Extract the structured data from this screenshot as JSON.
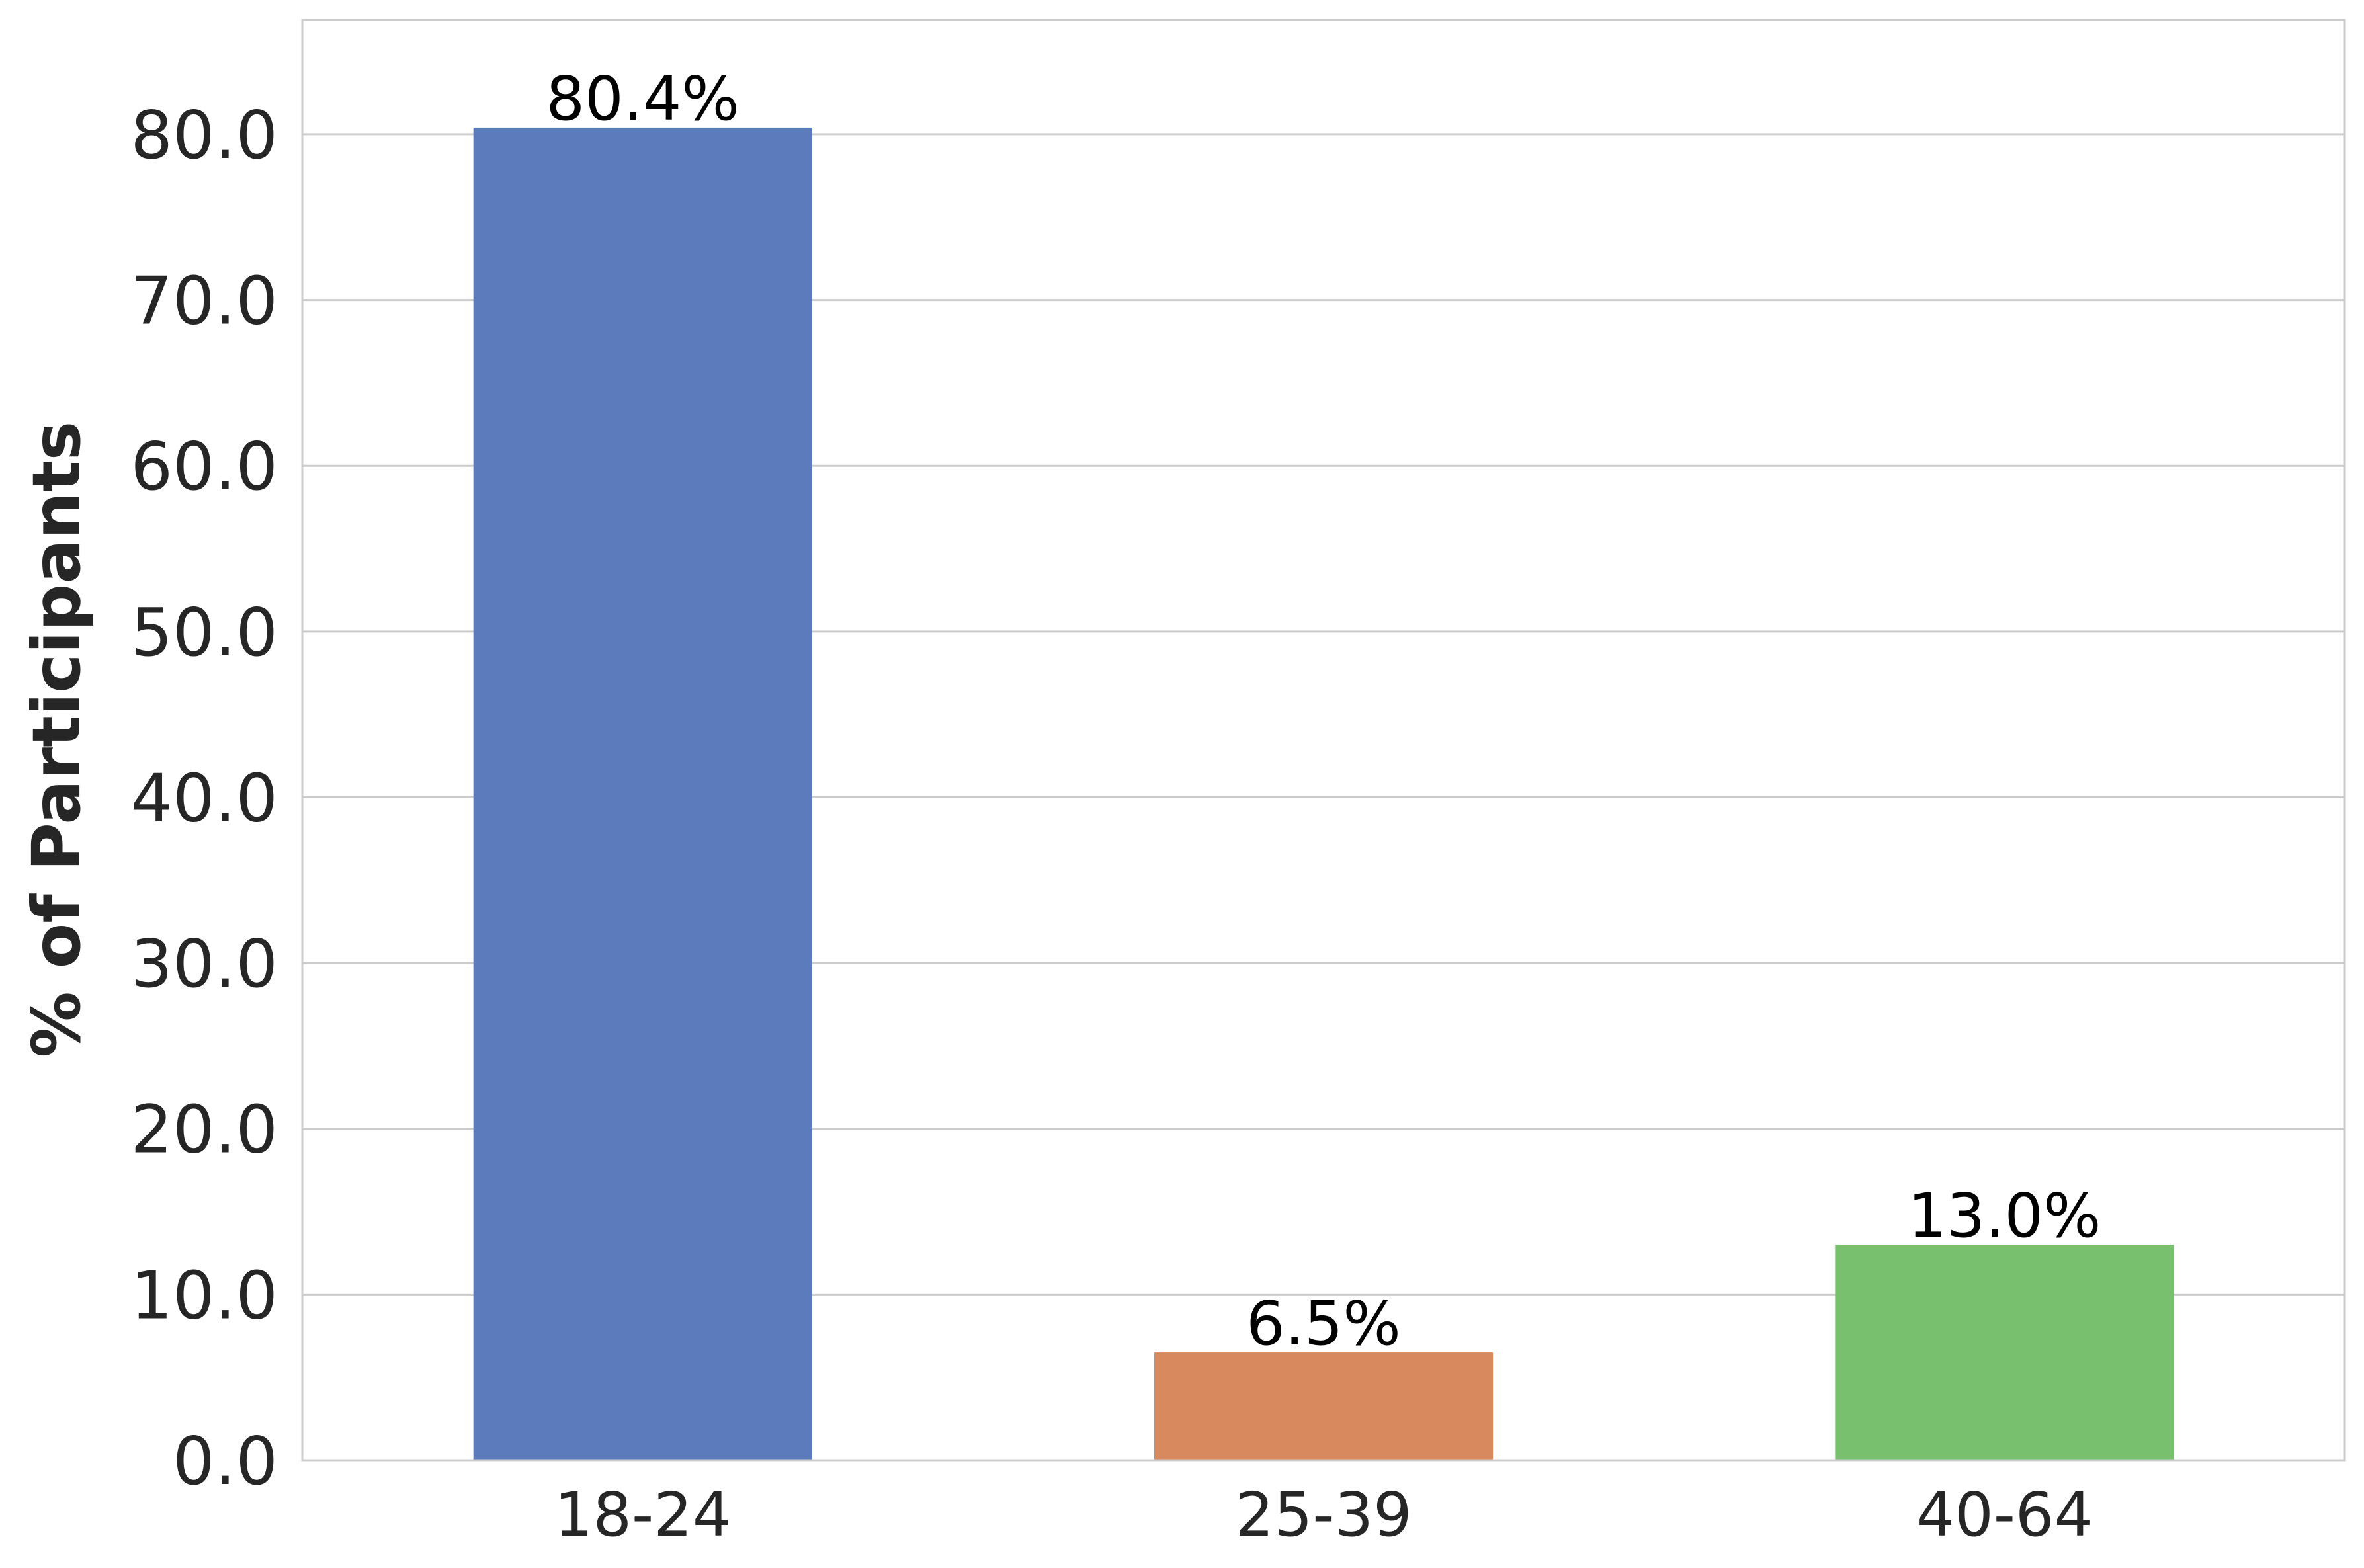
{
  "chart_data": {
    "type": "bar",
    "categories": [
      "18-24",
      "25-39",
      "40-64"
    ],
    "values": [
      80.4,
      6.5,
      13.0
    ],
    "value_labels": [
      "80.4%",
      "6.5%",
      "13.0%"
    ],
    "colors": [
      "#5b7bbd",
      "#d9895e",
      "#78bf6e"
    ],
    "title": "",
    "xlabel": "",
    "ylabel": "% of Participants",
    "ylim": [
      0,
      86.9
    ],
    "yticks": [
      0,
      10,
      20,
      30,
      40,
      50,
      60,
      70,
      80
    ],
    "ytick_labels": [
      "0.0",
      "10.0",
      "20.0",
      "30.0",
      "40.0",
      "50.0",
      "60.0",
      "70.0",
      "80.0"
    ],
    "grid": "horizontal",
    "grid_color": "#cccccc",
    "frame_color": "#cccccc"
  }
}
